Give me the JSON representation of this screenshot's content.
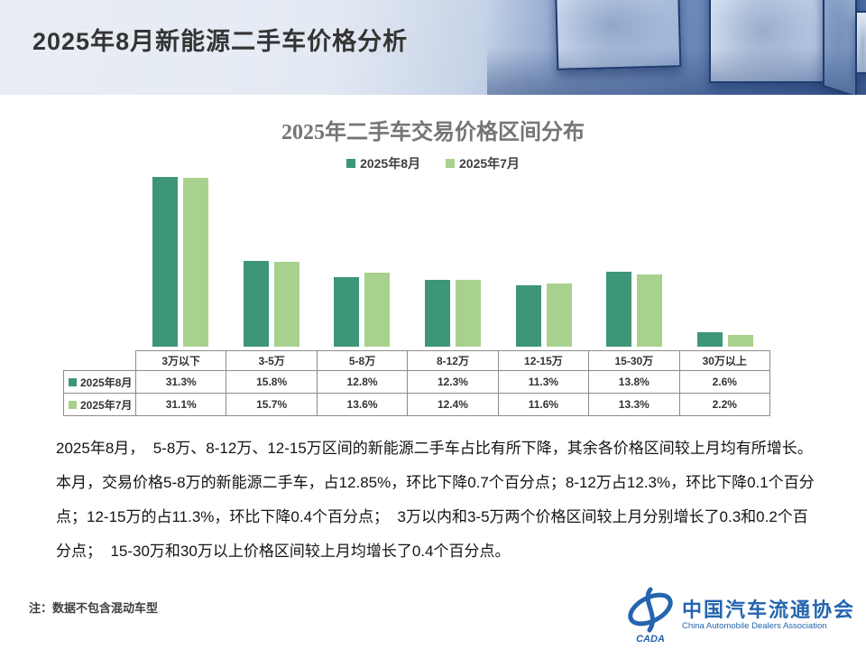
{
  "header": {
    "title": "2025年8月新能源二手车价格分析"
  },
  "chart_data": {
    "type": "bar",
    "title": "2025年二手车交易价格区间分布",
    "categories": [
      "3万以下",
      "3-5万",
      "5-8万",
      "8-12万",
      "12-15万",
      "15-30万",
      "30万以上"
    ],
    "series": [
      {
        "name": "2025年8月",
        "color": "#3d9678",
        "values": [
          31.3,
          15.8,
          12.8,
          12.3,
          11.3,
          13.8,
          2.6
        ]
      },
      {
        "name": "2025年7月",
        "color": "#a9d18e",
        "values": [
          31.1,
          15.7,
          13.6,
          12.4,
          11.6,
          13.3,
          2.2
        ]
      }
    ],
    "ylim": [
      0,
      32.3
    ],
    "grid": false,
    "axes_visible": false,
    "legend_position": "top",
    "value_suffix": "%"
  },
  "table": {
    "headers": [
      "3万以下",
      "3-5万",
      "5-8万",
      "8-12万",
      "12-15万",
      "15-30万",
      "30万以上"
    ],
    "rows": [
      {
        "label": "2025年8月",
        "marker_color": "#3d9678",
        "values": [
          "31.3%",
          "15.8%",
          "12.8%",
          "12.3%",
          "11.3%",
          "13.8%",
          "2.6%"
        ]
      },
      {
        "label": "2025年7月",
        "marker_color": "#a9d18e",
        "values": [
          "31.1%",
          "15.7%",
          "13.6%",
          "12.4%",
          "11.6%",
          "13.3%",
          "2.2%"
        ]
      }
    ]
  },
  "body": {
    "paragraph1": "2025年8月，  5-8万、8-12万、12-15万区间的新能源二手车占比有所下降，其余各价格区间较上月均有所增长。",
    "paragraph2": "本月，交易价格5-8万的新能源二手车，占12.85%，环比下降0.7个百分点；8-12万占12.3%，环比下降0.1个百分点；12-15万的占11.3%，环比下降0.4个百分点；  3万以内和3-5万两个价格区间较上月分别增长了0.3和0.2个百分点；  15-30万和30万以上价格区间较上月均增长了0.4个百分点。"
  },
  "note": "注：数据不包含混动车型",
  "logo": {
    "abbr": "CADA",
    "name_cn": "中国汽车流通协会",
    "name_en": "China Automobile Dealers Association",
    "color": "#2465af"
  },
  "colors": {
    "series_aug": "#3d9678",
    "series_jul": "#a9d18e",
    "table_border": "#8c8c8c",
    "chart_title": "#757575",
    "header_blue": "#4f70a6"
  }
}
